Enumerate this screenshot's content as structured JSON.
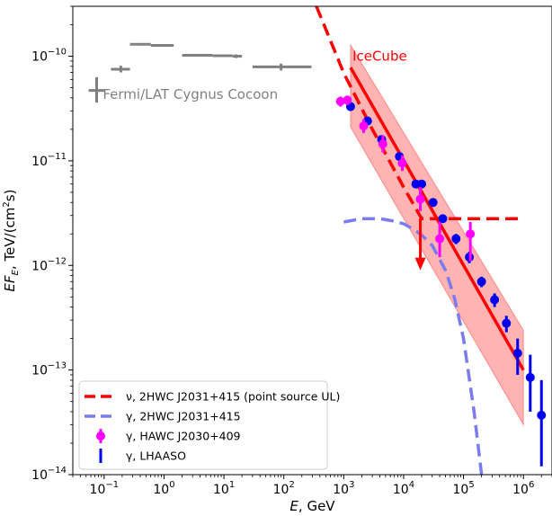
{
  "chart_data": {
    "type": "scatter",
    "x_scale": "log",
    "y_scale": "log",
    "xlim": [
      0.03,
      3000000
    ],
    "ylim": [
      1e-14,
      3e-10
    ],
    "xlabel_html": "<tspan font-style='italic'>E</tspan>, GeV",
    "ylabel_html": "<tspan font-style='italic'>EF</tspan><tspan font-style='italic' font-size='10' dy='4'>E</tspan><tspan dy='-4'>, TeV/(cm</tspan><tspan font-size='10' dy='-6'>2</tspan><tspan dy='6'>s)</tspan>",
    "x_ticks": [
      {
        "value": 0.1,
        "label": "10",
        "exp": "−1"
      },
      {
        "value": 1,
        "label": "10",
        "exp": "0"
      },
      {
        "value": 10,
        "label": "10",
        "exp": "1"
      },
      {
        "value": 100,
        "label": "10",
        "exp": "2"
      },
      {
        "value": 1000,
        "label": "10",
        "exp": "3"
      },
      {
        "value": 10000,
        "label": "10",
        "exp": "4"
      },
      {
        "value": 100000,
        "label": "10",
        "exp": "5"
      },
      {
        "value": 1000000,
        "label": "10",
        "exp": "6"
      }
    ],
    "y_ticks": [
      {
        "value": 1e-14,
        "label": "10",
        "exp": "−14"
      },
      {
        "value": 1e-13,
        "label": "10",
        "exp": "−13"
      },
      {
        "value": 1e-12,
        "label": "10",
        "exp": "−12"
      },
      {
        "value": 1e-11,
        "label": "10",
        "exp": "−11"
      },
      {
        "value": 1e-10,
        "label": "10",
        "exp": "−10"
      }
    ],
    "annotations": [
      {
        "text": "IceCube",
        "x": 1400,
        "y": 1e-10,
        "color": "#ff0000"
      },
      {
        "text": "Fermi/LAT Cygnus Cocoon",
        "x": 0.095,
        "y": 4.3e-11,
        "color": "#808080"
      }
    ],
    "legend": {
      "position": "lower-left",
      "entries": [
        {
          "label": "ν, 2HWC J2031+415 (point source UL)",
          "style": "dashed-line",
          "color": "#ff0000"
        },
        {
          "label": "γ, 2HWC J2031+415",
          "style": "dashed-line",
          "color": "#7b7bf0"
        },
        {
          "label": "γ, HAWC J2030+409",
          "style": "errorbar-marker",
          "color": "#ff00ff"
        },
        {
          "label": "γ, LHAASO",
          "style": "errorbar-only",
          "color": "#0000ee"
        }
      ]
    },
    "series": {
      "fermi": {
        "color": "#808080",
        "points": [
          {
            "x": 0.19,
            "xlo": 0.13,
            "xhi": 0.27,
            "y": 7.5e-11,
            "ylo": 7e-11,
            "yhi": 8.1e-11
          },
          {
            "x": 0.42,
            "xlo": 0.27,
            "xhi": 0.6,
            "y": 1.3e-10,
            "ylo": 1.3e-10,
            "yhi": 1.3e-10
          },
          {
            "x": 0.9,
            "xlo": 0.6,
            "xhi": 1.45,
            "y": 1.27e-10,
            "ylo": 1.27e-10,
            "yhi": 1.27e-10
          },
          {
            "x": 4.0,
            "xlo": 2.0,
            "xhi": 6.5,
            "y": 1.02e-10,
            "ylo": 1.02e-10,
            "yhi": 1.02e-10
          },
          {
            "x": 11,
            "xlo": 6.5,
            "xhi": 14,
            "y": 1.01e-10,
            "ylo": 1.01e-10,
            "yhi": 1.01e-10
          },
          {
            "x": 16,
            "xlo": 14,
            "xhi": 20,
            "y": 1e-10,
            "ylo": 9.6e-11,
            "yhi": 1.04e-10
          },
          {
            "x": 90,
            "xlo": 30,
            "xhi": 290,
            "y": 7.9e-11,
            "ylo": 7.3e-11,
            "yhi": 8.5e-11
          }
        ],
        "legend_cross": {
          "x": 0.075,
          "xlo": 0.055,
          "xhi": 0.1,
          "y": 4.7e-11,
          "ylo": 3.6e-11,
          "yhi": 6.3e-11
        }
      },
      "icecube_band": {
        "color": "#ff9999",
        "polygon": [
          {
            "x": 1300,
            "y": 1.28e-10
          },
          {
            "x": 1000000,
            "y": 2.4e-13
          },
          {
            "x": 1000000,
            "y": 3e-14
          },
          {
            "x": 1300,
            "y": 2.1e-11
          }
        ]
      },
      "icecube_line": {
        "color": "#ff0000",
        "x": [
          1300,
          1000000
        ],
        "y": [
          7.8e-11,
          1e-13
        ]
      },
      "neutrino_ul": {
        "color": "#ff0000",
        "x": [
          350,
          1000,
          3000,
          10000,
          20000,
          30000,
          100000,
          1000000
        ],
        "y": [
          3e-10,
          6.9e-11,
          2e-11,
          5.6e-12,
          2.8e-12,
          2.8e-12,
          2.8e-12,
          2.8e-12
        ],
        "ul_arrow": {
          "x": 19000,
          "y_from": 2.8e-12,
          "y_to": 9e-13
        }
      },
      "gamma_model": {
        "color": "#7b7bf0",
        "x": [
          1000,
          2000,
          4000,
          7000,
          10000,
          15000,
          20000,
          30000,
          50000,
          70000,
          100000,
          150000,
          200000
        ],
        "y": [
          2.6e-12,
          2.8e-12,
          2.8e-12,
          2.65e-12,
          2.5e-12,
          2.2e-12,
          1.95e-12,
          1.55e-12,
          9e-13,
          5e-13,
          2e-13,
          4e-14,
          1e-14
        ]
      },
      "hawc": {
        "color": "#ff00ff",
        "points": [
          {
            "x": 880,
            "y": 3.7e-11,
            "ylo": 3.3e-11,
            "yhi": 4.1e-11
          },
          {
            "x": 1150,
            "y": 3.8e-11,
            "ylo": 3.4e-11,
            "yhi": 4.2e-11
          },
          {
            "x": 2150,
            "y": 2.15e-11,
            "ylo": 1.85e-11,
            "yhi": 2.5e-11
          },
          {
            "x": 4500,
            "y": 1.45e-11,
            "ylo": 1.2e-11,
            "yhi": 1.75e-11
          },
          {
            "x": 9500,
            "y": 9.5e-12,
            "ylo": 8e-12,
            "yhi": 1.13e-11
          },
          {
            "x": 19000,
            "y": 4.3e-12,
            "ylo": 3.3e-12,
            "yhi": 5.6e-12
          },
          {
            "x": 40000,
            "y": 1.8e-12,
            "ylo": 1.2e-12,
            "yhi": 2.6e-12
          },
          {
            "x": 130000,
            "y": 2e-12,
            "ylo": 1.1e-12,
            "yhi": 2.6e-12
          }
        ]
      },
      "lhaaso": {
        "color": "#0000ee",
        "points": [
          {
            "x": 1300,
            "y": 3.3e-11,
            "ylo": 3e-11,
            "yhi": 3.6e-11
          },
          {
            "x": 2500,
            "y": 2.4e-11,
            "ylo": 2.2e-11,
            "yhi": 2.6e-11
          },
          {
            "x": 4300,
            "y": 1.6e-11,
            "ylo": 1.48e-11,
            "yhi": 1.72e-11
          },
          {
            "x": 8500,
            "y": 1.1e-11,
            "ylo": 1e-11,
            "yhi": 1.2e-11
          },
          {
            "x": 16000,
            "y": 6e-12,
            "ylo": 5.5e-12,
            "yhi": 6.5e-12
          },
          {
            "x": 20000,
            "y": 6e-12,
            "ylo": 5.5e-12,
            "yhi": 6.5e-12
          },
          {
            "x": 31000,
            "y": 4e-12,
            "ylo": 3.7e-12,
            "yhi": 4.3e-12
          },
          {
            "x": 45000,
            "y": 2.8e-12,
            "ylo": 2.55e-12,
            "yhi": 3.05e-12
          },
          {
            "x": 75000,
            "y": 1.8e-12,
            "ylo": 1.6e-12,
            "yhi": 2e-12
          },
          {
            "x": 125000,
            "y": 1.2e-12,
            "ylo": 1.05e-12,
            "yhi": 1.35e-12
          },
          {
            "x": 200000,
            "y": 7e-13,
            "ylo": 6.2e-13,
            "yhi": 7.8e-13
          },
          {
            "x": 330000,
            "y": 4.7e-13,
            "ylo": 4e-13,
            "yhi": 5.4e-13
          },
          {
            "x": 520000,
            "y": 2.8e-13,
            "ylo": 2.3e-13,
            "yhi": 3.3e-13
          },
          {
            "x": 800000,
            "y": 1.45e-13,
            "ylo": 9e-14,
            "yhi": 2e-13
          },
          {
            "x": 1300000,
            "y": 8.5e-14,
            "ylo": 4e-14,
            "yhi": 1.4e-13
          },
          {
            "x": 2000000,
            "y": 3.7e-14,
            "ylo": 1.2e-14,
            "yhi": 8e-14
          }
        ]
      }
    }
  }
}
